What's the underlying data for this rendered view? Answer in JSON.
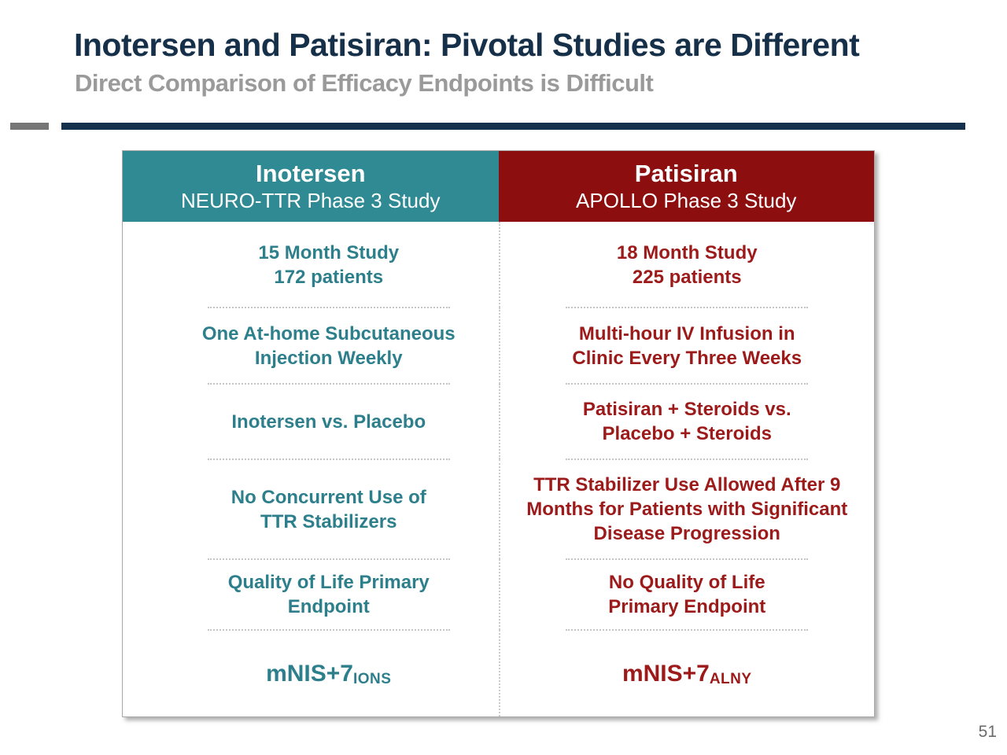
{
  "slide": {
    "title": "Inotersen and Patisiran: Pivotal Studies are Different",
    "subtitle": "Direct Comparison of Efficacy Endpoints is Difficult",
    "page_number": "51"
  },
  "colors": {
    "title_navy": "#16304A",
    "subtitle_gray": "#9A9A9A",
    "rule_navy": "#14304D",
    "rule_gray": "#767676",
    "inotersen_header_bg": "#2F8A94",
    "inotersen_text": "#2D7F8B",
    "patisiran_header_bg": "#8C0E0E",
    "patisiran_text": "#9C1A1A"
  },
  "table": {
    "headers": {
      "inotersen": {
        "title": "Inotersen",
        "subtitle": "NEURO-TTR Phase 3 Study"
      },
      "patisiran": {
        "title": "Patisiran",
        "subtitle": "APOLLO Phase 3 Study"
      }
    },
    "rows": [
      {
        "left": "15 Month Study\n172 patients",
        "right": "18 Month Study\n225 patients"
      },
      {
        "left": "One At-home Subcutaneous\nInjection Weekly",
        "right": "Multi-hour IV Infusion in\nClinic Every Three Weeks"
      },
      {
        "left": "Inotersen vs. Placebo",
        "right": "Patisiran + Steroids vs.\nPlacebo + Steroids"
      },
      {
        "left": "No Concurrent Use of\nTTR Stabilizers",
        "right": "TTR Stabilizer Use Allowed After 9\nMonths for Patients with Significant\nDisease Progression"
      },
      {
        "left": "Quality of Life Primary\nEndpoint",
        "right": "No Quality of Life\nPrimary Endpoint"
      }
    ],
    "footnote_row": {
      "left": {
        "base": "mNIS+7",
        "sub": "IONS"
      },
      "right": {
        "base": "mNIS+7",
        "sub": "ALNY"
      }
    }
  }
}
